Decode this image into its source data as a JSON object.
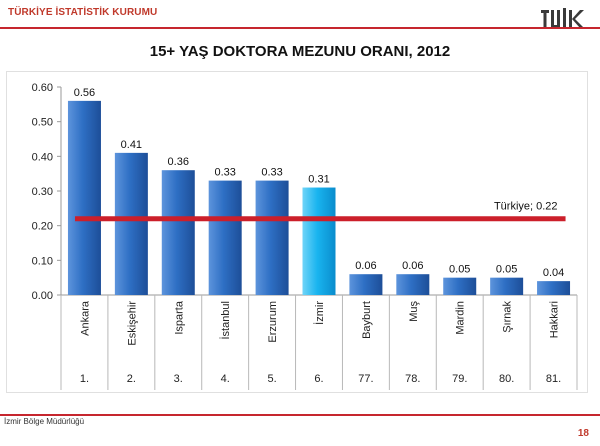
{
  "header": {
    "organization": "TÜRKİYE İSTATİSTİK KURUMU",
    "logo_text": "TÜİK"
  },
  "footer": {
    "office": "İzmir Bölge Müdürlüğü",
    "page_number": "18"
  },
  "colors": {
    "bar": "#2e6fc4",
    "bar_highlight": "#19b4ef",
    "reference_line": "#cc1f2a",
    "brand_red": "#c6262e"
  },
  "chart_data": {
    "type": "bar",
    "title": "15+ YAŞ DOKTORA MEZUNU ORANI, 2012",
    "xlabel": "",
    "ylabel": "",
    "ylim": [
      0,
      0.6
    ],
    "yticks": [
      "0.00",
      "0.10",
      "0.20",
      "0.30",
      "0.40",
      "0.50",
      "0.60"
    ],
    "categories": [
      "Ankara",
      "Eskişehir",
      "Isparta",
      "İstanbul",
      "Erzurum",
      "İzmir",
      "Bayburt",
      "Muş",
      "Mardin",
      "Şırnak",
      "Hakkari"
    ],
    "ranks": [
      "1.",
      "2.",
      "3.",
      "4.",
      "5.",
      "6.",
      "77.",
      "78.",
      "79.",
      "80.",
      "81."
    ],
    "values": [
      0.56,
      0.41,
      0.36,
      0.33,
      0.33,
      0.31,
      0.06,
      0.06,
      0.05,
      0.05,
      0.04
    ],
    "value_labels": [
      "0.56",
      "0.41",
      "0.36",
      "0.33",
      "0.33",
      "0.31",
      "0.06",
      "0.06",
      "0.05",
      "0.05",
      "0.04"
    ],
    "highlight_category": "İzmir",
    "reference_line": {
      "label": "Türkiye; 0.22",
      "value": 0.22
    },
    "grid": false
  }
}
